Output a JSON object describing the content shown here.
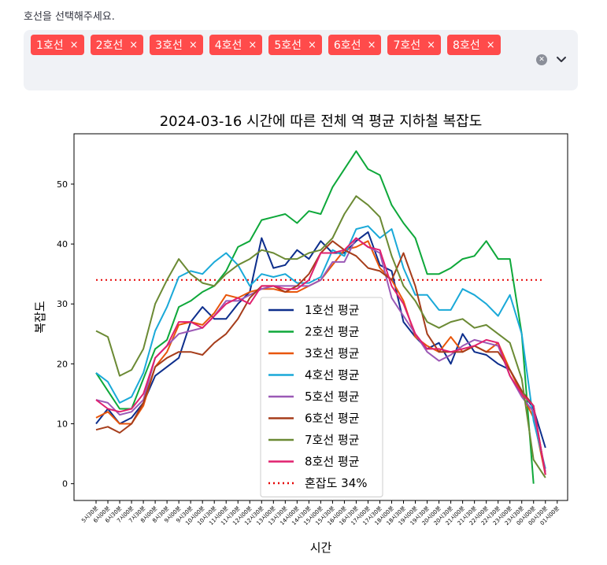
{
  "select": {
    "label": "호선을 선택해주세요.",
    "chips": [
      "1호선",
      "2호선",
      "3호선",
      "4호선",
      "5호선",
      "6호선",
      "7호선",
      "8호선"
    ],
    "chip_close": "×",
    "clear_icon": "x-circle-icon",
    "dropdown_icon": "chevron-down-icon"
  },
  "colors": {
    "accent": "#ff4b4b",
    "select_bg": "#f0f2f6"
  },
  "chart_data": {
    "type": "line",
    "title": "2024-03-16 시간에 따른 전체 역 평균 지하철 복잡도",
    "xlabel": "시간",
    "ylabel": "복잡도",
    "ylim": [
      -2.8,
      58.4
    ],
    "yticks": [
      0,
      10,
      20,
      30,
      40,
      50
    ],
    "grid": false,
    "legend_position": "lower-center",
    "categories": [
      "5시30분",
      "6시00분",
      "6시30분",
      "7시00분",
      "7시30분",
      "8시00분",
      "8시30분",
      "9시00분",
      "9시30분",
      "10시00분",
      "10시30분",
      "11시00분",
      "11시30분",
      "12시00분",
      "12시30분",
      "13시00분",
      "13시30분",
      "14시00분",
      "14시30분",
      "15시00분",
      "15시30분",
      "16시00분",
      "16시30분",
      "17시00분",
      "17시30분",
      "18시00분",
      "18시30분",
      "19시00분",
      "19시30분",
      "20시00분",
      "20시30분",
      "21시00분",
      "21시30분",
      "22시00분",
      "22시30분",
      "23시00분",
      "23시30분",
      "00시00분",
      "00시30분",
      "01시00분"
    ],
    "series": [
      {
        "name": "1호선 평균",
        "color": "#0d2e8c",
        "values": [
          10,
          12.5,
          10,
          11,
          13.5,
          18,
          19.5,
          21,
          27,
          29.5,
          27.5,
          27.5,
          30,
          32,
          41,
          36,
          36.5,
          39,
          37.5,
          40.5,
          38.5,
          38.5,
          40.5,
          42,
          36.5,
          35.5,
          27,
          24.5,
          22.5,
          23.5,
          20,
          25,
          22,
          21.5,
          20,
          19,
          15.5,
          12.5,
          6,
          null
        ]
      },
      {
        "name": "2호선 평균",
        "color": "#0ea83a",
        "values": [
          18.5,
          15.5,
          12.5,
          12.5,
          17.5,
          22.5,
          24,
          29.5,
          30.5,
          32,
          33,
          35.5,
          39.5,
          40.5,
          44,
          44.5,
          45,
          43.5,
          45.5,
          45,
          49.5,
          52.5,
          55.5,
          52.5,
          51.5,
          46.5,
          43.5,
          41,
          35,
          35,
          36,
          37.5,
          38,
          40.5,
          37.5,
          37.5,
          25,
          0,
          null,
          null
        ]
      },
      {
        "name": "3호선 평균",
        "color": "#e8560a",
        "values": [
          11,
          12,
          10,
          10,
          13,
          19.5,
          22,
          26.5,
          27,
          26.5,
          28.5,
          31.5,
          31,
          32,
          32.5,
          32.5,
          32,
          32,
          33,
          34,
          36.5,
          39,
          39.5,
          40.5,
          36,
          34,
          30.5,
          24.5,
          23,
          22,
          24.5,
          22,
          23,
          22,
          23.5,
          19,
          15,
          11,
          1.5,
          null
        ]
      },
      {
        "name": "4호선 평균",
        "color": "#1aa9d8",
        "values": [
          18.5,
          17,
          13.5,
          14.5,
          18.5,
          25.5,
          29.5,
          34.5,
          35.5,
          35,
          37,
          38.5,
          36.5,
          33,
          35,
          34.5,
          35,
          33.5,
          33.5,
          34.5,
          39,
          38,
          42.5,
          43,
          41,
          42.5,
          36,
          31.5,
          31.5,
          29,
          29,
          32.5,
          31.5,
          30,
          28,
          31.5,
          25,
          10.5,
          2.5,
          null
        ]
      },
      {
        "name": "5호선 평균",
        "color": "#9b59b6",
        "values": [
          14,
          13.5,
          11.5,
          12,
          14,
          21,
          23,
          25,
          25.5,
          26,
          28,
          30.5,
          30.5,
          31.5,
          32.5,
          33,
          33,
          33,
          33,
          34,
          37,
          37,
          41,
          39.5,
          38.5,
          31,
          28,
          25,
          22,
          20.5,
          21.5,
          23,
          24,
          23.5,
          23,
          18,
          14.5,
          12,
          2,
          null
        ]
      },
      {
        "name": "6호선 평균",
        "color": "#a63d1b",
        "values": [
          9,
          9.5,
          8.5,
          10,
          13.5,
          19.5,
          21,
          22,
          22,
          21.5,
          23.5,
          25,
          27.5,
          31,
          33,
          33,
          32,
          33,
          35,
          38.5,
          40.5,
          39,
          38,
          36,
          35.5,
          34,
          38.5,
          33,
          25,
          22,
          22,
          22,
          23,
          22,
          22,
          19,
          15.5,
          13,
          1.5,
          null
        ]
      },
      {
        "name": "7호선 평균",
        "color": "#6b8a34",
        "values": [
          25.5,
          24.5,
          18,
          19,
          22.5,
          30,
          34,
          37.5,
          35,
          33.5,
          33,
          35,
          36.5,
          37.5,
          39,
          38.5,
          37.5,
          37.5,
          38.5,
          39,
          41,
          45,
          48,
          46.5,
          44.5,
          38,
          33,
          30.5,
          27,
          26,
          27,
          27.5,
          26,
          26.5,
          25,
          23.5,
          17.5,
          4,
          1,
          null
        ]
      },
      {
        "name": "8호선 평균",
        "color": "#e0216f",
        "values": [
          14,
          12.5,
          12,
          12.5,
          15,
          21,
          23,
          27,
          27,
          26,
          28,
          30,
          31,
          30,
          33,
          33,
          32.5,
          32.5,
          34,
          38.5,
          38.5,
          39,
          41,
          39.5,
          39,
          33,
          30,
          25,
          22.5,
          22.5,
          22,
          22.5,
          23,
          24,
          23.5,
          18,
          15,
          13,
          1.5,
          null
        ]
      }
    ],
    "reference_line": {
      "name": "혼잡도 34%",
      "value": 34,
      "color": "#e60000",
      "style": "dotted"
    }
  }
}
